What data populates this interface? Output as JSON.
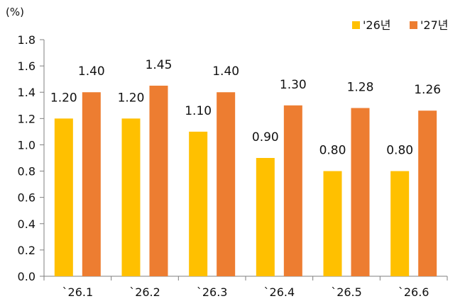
{
  "chart_data": {
    "type": "bar",
    "unit_label": "(%)",
    "categories": [
      "`26.1",
      "`26.2",
      "`26.3",
      "`26.4",
      "`26.5",
      "`26.6"
    ],
    "series": [
      {
        "name": "'26년",
        "color": "#FFC000",
        "values": [
          1.2,
          1.2,
          1.1,
          0.9,
          0.8,
          0.8
        ],
        "labels": [
          "1.20",
          "1.20",
          "1.10",
          "0.90",
          "0.80",
          "0.80"
        ]
      },
      {
        "name": "'27년",
        "color": "#ED7D31",
        "values": [
          1.4,
          1.45,
          1.4,
          1.3,
          1.28,
          1.26
        ],
        "labels": [
          "1.40",
          "1.45",
          "1.40",
          "1.30",
          "1.28",
          "1.26"
        ]
      }
    ],
    "ylim": [
      0,
      1.8
    ],
    "yticks": [
      "0.0",
      "0.2",
      "0.4",
      "0.6",
      "0.8",
      "1.0",
      "1.2",
      "1.4",
      "1.6",
      "1.8"
    ],
    "legend_position": "top-right",
    "grid": false
  }
}
